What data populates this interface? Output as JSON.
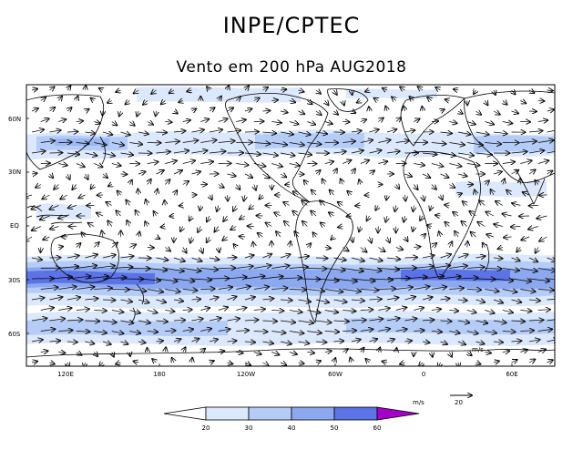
{
  "header": {
    "title": "INPE/CPTEC",
    "subtitle": "Vento em 200 hPa AUG2018"
  },
  "map": {
    "lat_labels": [
      "60N",
      "30N",
      "EQ",
      "30S",
      "60S"
    ],
    "lon_labels": [
      "120E",
      "180",
      "120W",
      "60W",
      "0",
      "60E"
    ],
    "units_note": "m/s",
    "colors": {
      "land": "#000000",
      "vector": "#000000"
    }
  },
  "legend": {
    "ticks": [
      "20",
      "30",
      "40",
      "50",
      "60"
    ],
    "colors": [
      "#ffffff",
      "#dce8fb",
      "#b5ccf6",
      "#8ca9ef",
      "#5b73e6",
      "#a400c8"
    ],
    "units": "m/s",
    "ref_value": "20"
  }
}
